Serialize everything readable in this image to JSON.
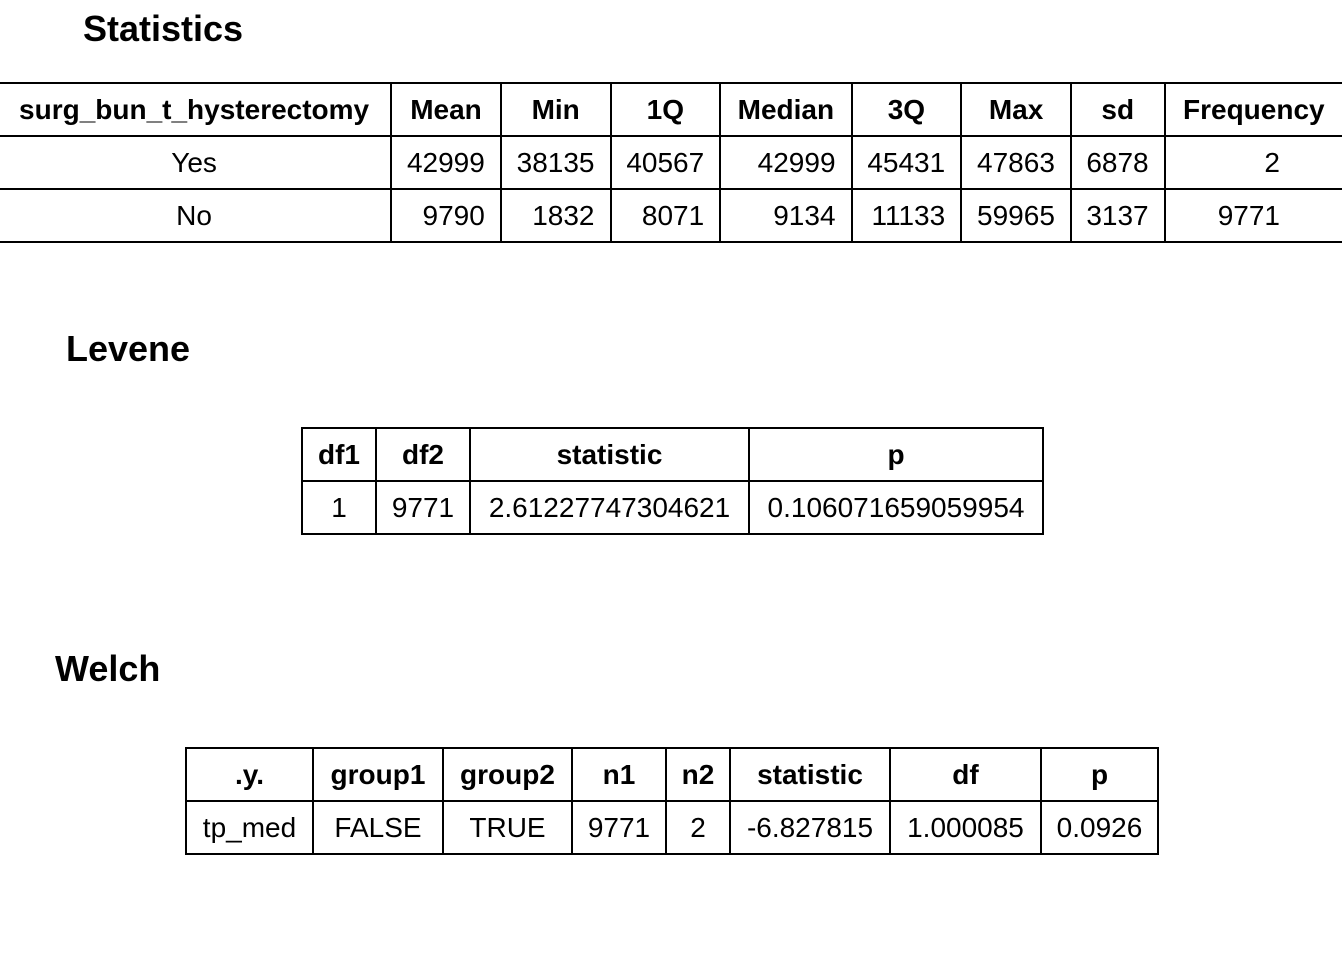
{
  "sections": {
    "statistics_title": "Statistics",
    "levene_title": "Levene",
    "welch_title": "Welch"
  },
  "statistics": {
    "headers": [
      "surg_bun_t_hysterectomy",
      "Mean",
      "Min",
      "1Q",
      "Median",
      "3Q",
      "Max",
      "sd",
      "Frequency"
    ],
    "rows": [
      [
        "Yes",
        "42999",
        "38135",
        "40567",
        "42999",
        "45431",
        "47863",
        "6878",
        "2"
      ],
      [
        "No",
        "9790",
        "1832",
        "8071",
        "9134",
        "11133",
        "59965",
        "3137",
        "9771"
      ]
    ]
  },
  "levene": {
    "headers": [
      "df1",
      "df2",
      "statistic",
      "p"
    ],
    "row": [
      "1",
      "9771",
      "2.61227747304621",
      "0.106071659059954"
    ]
  },
  "welch": {
    "headers": [
      ".y.",
      "group1",
      "group2",
      "n1",
      "n2",
      "statistic",
      "df",
      "p"
    ],
    "row": [
      "tp_med",
      "FALSE",
      "TRUE",
      "9771",
      "2",
      "-6.827815",
      "1.000085",
      "0.0926"
    ]
  }
}
